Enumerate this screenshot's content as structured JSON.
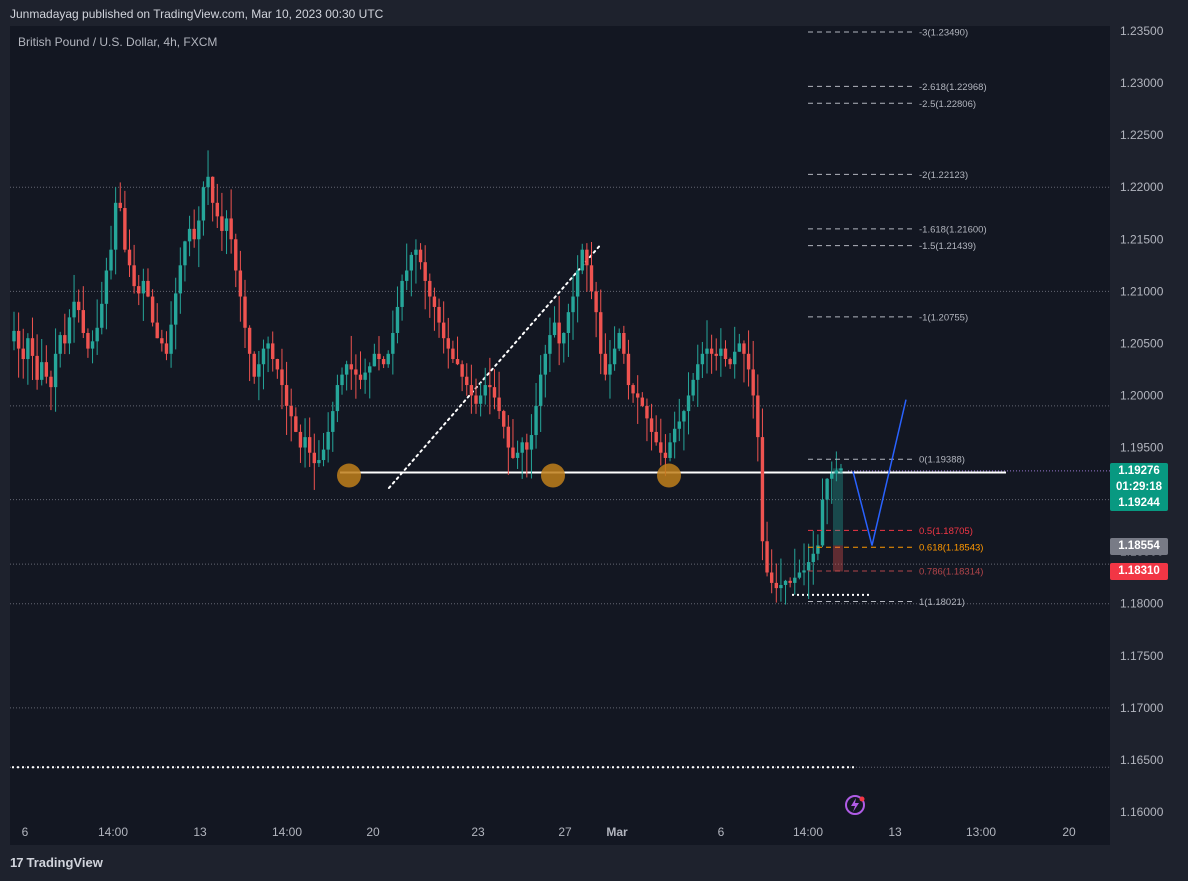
{
  "header": {
    "published_by": "Junmadayag published on TradingView.com, Mar 10, 2023 00:30 UTC",
    "symbol_line": "British Pound / U.S. Dollar, 4h, FXCM"
  },
  "price_tags": {
    "last_price": "1.19276",
    "countdown": "01:29:18",
    "bid": "1.19244",
    "level_grey": "1.18554",
    "level_red": "1.18310"
  },
  "branding": {
    "logo_icon": "tradingview-logo-icon",
    "name": "TradingView"
  },
  "colors": {
    "background": "#131722",
    "frame": "#1e222d",
    "up": "#26a69a",
    "down": "#ef5350",
    "grid_dotted": "#787b86",
    "projection": "#2962ff",
    "pivot_marker": "#c07f1a",
    "fib_warning": "#ff9800",
    "fib_danger": "#f23645"
  },
  "chart_data": {
    "type": "candlestick",
    "title": "British Pound / U.S. Dollar, 4h, FXCM",
    "ylim": [
      1.1588,
      1.2358
    ],
    "y_ticks": [
      "1.23500",
      "1.23000",
      "1.22500",
      "1.22000",
      "1.21500",
      "1.21000",
      "1.20500",
      "1.20000",
      "1.19500",
      "1.19000",
      "1.18500",
      "1.18000",
      "1.17500",
      "1.17000",
      "1.16500",
      "1.16000"
    ],
    "x_ticks": [
      "6",
      "14:00",
      "13",
      "14:00",
      "20",
      "23",
      "27",
      "Mar",
      "6",
      "14:00",
      "13",
      "13:00",
      "20"
    ],
    "x_ticks_bold": [
      "Mar"
    ],
    "close_path": [
      1.2062,
      1.2045,
      1.2035,
      1.2055,
      1.2038,
      1.2015,
      1.2032,
      1.2018,
      1.2008,
      1.204,
      1.2058,
      1.205,
      1.2075,
      1.209,
      1.2082,
      1.206,
      1.2045,
      1.2052,
      1.2065,
      1.2088,
      1.212,
      1.214,
      1.2185,
      1.218,
      1.214,
      1.2125,
      1.2105,
      1.2098,
      1.211,
      1.2095,
      1.207,
      1.2055,
      1.205,
      1.204,
      1.2068,
      1.2098,
      1.2125,
      1.2148,
      1.216,
      1.215,
      1.2168,
      1.22,
      1.221,
      1.2185,
      1.2172,
      1.2158,
      1.217,
      1.215,
      1.212,
      1.2095,
      1.2065,
      1.204,
      1.2018,
      1.203,
      1.2045,
      1.205,
      1.2035,
      1.2025,
      1.201,
      1.199,
      1.198,
      1.1965,
      1.195,
      1.196,
      1.1945,
      1.1935,
      1.1938,
      1.1948,
      1.1965,
      1.1985,
      1.201,
      1.202,
      1.203,
      1.2025,
      1.202,
      1.2015,
      1.2022,
      1.2028,
      1.204,
      1.2035,
      1.203,
      1.204,
      1.206,
      1.2085,
      1.211,
      1.212,
      1.2135,
      1.214,
      1.2128,
      1.211,
      1.2095,
      1.2085,
      1.207,
      1.2055,
      1.2045,
      1.2035,
      1.203,
      1.2018,
      1.201,
      1.2,
      1.1992,
      1.2,
      1.201,
      1.2008,
      1.1998,
      1.1985,
      1.197,
      1.195,
      1.194,
      1.1945,
      1.1955,
      1.1948,
      1.1962,
      1.199,
      1.202,
      1.204,
      1.2058,
      1.207,
      1.205,
      1.206,
      1.208,
      1.2095,
      1.212,
      1.214,
      1.2125,
      1.21,
      1.208,
      1.204,
      1.202,
      1.203,
      1.2045,
      1.206,
      1.204,
      1.201,
      1.2002,
      1.1998,
      1.199,
      1.1978,
      1.1965,
      1.1955,
      1.1945,
      1.194,
      1.1955,
      1.1968,
      1.1975,
      1.1985,
      1.2,
      1.2015,
      1.203,
      1.204,
      1.2045,
      1.204,
      1.2038,
      1.2045,
      1.2035,
      1.203,
      1.2042,
      1.205,
      1.204,
      1.2025,
      1.2,
      1.196,
      1.186,
      1.183,
      1.182,
      1.1815,
      1.1818,
      1.1822,
      1.182,
      1.1825,
      1.183,
      1.1832,
      1.184,
      1.1848,
      1.1856,
      1.19,
      1.192,
      1.1925,
      1.1928,
      1.193
    ],
    "resistance_trendline": {
      "from": [
        "Mar",
        1.2143
      ],
      "to": [
        "20",
        1.1909
      ],
      "style": "dotted"
    },
    "neckline": {
      "price": 1.1926,
      "style": "solid"
    },
    "pivot_markers": [
      {
        "date": "17 Feb",
        "price": 1.1926
      },
      {
        "date": "24 Feb",
        "price": 1.1926
      },
      {
        "date": "3 Mar",
        "price": 1.1926
      }
    ],
    "dotted_levels": [
      1.22,
      1.21,
      1.199,
      1.19,
      1.1838,
      1.18,
      1.17,
      1.1643
    ],
    "support_box": {
      "price": 1.18085,
      "style": "dotted"
    },
    "projection_path": [
      1.1927,
      1.1856,
      1.1996
    ],
    "fib_levels": [
      {
        "label": "-3(1.23490)",
        "price": 1.2349
      },
      {
        "label": "-2.618(1.22968)",
        "price": 1.22968
      },
      {
        "label": "-2.5(1.22806)",
        "price": 1.22806
      },
      {
        "label": "-2(1.22123)",
        "price": 1.22123
      },
      {
        "label": "-1.618(1.21600)",
        "price": 1.216
      },
      {
        "label": "-1.5(1.21439)",
        "price": 1.21439
      },
      {
        "label": "-1(1.20755)",
        "price": 1.20755
      },
      {
        "label": "0(1.19388)",
        "price": 1.19388
      },
      {
        "label": "0.5(1.18705)",
        "price": 1.18705
      },
      {
        "label": "0.618(1.18543)",
        "price": 1.18543
      },
      {
        "label": "0.786(1.18314)",
        "price": 1.18314
      },
      {
        "label": "1(1.18021)",
        "price": 1.18021
      }
    ]
  }
}
